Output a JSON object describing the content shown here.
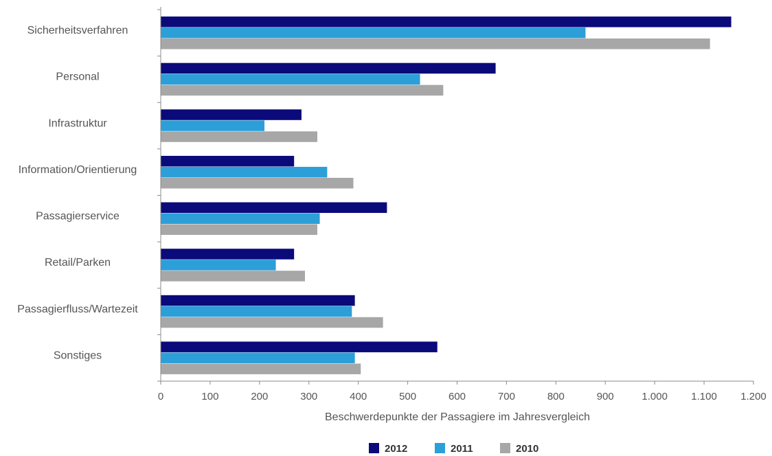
{
  "chart_data": {
    "type": "bar",
    "orientation": "horizontal",
    "categories": [
      "Sicherheitsverfahren",
      "Personal",
      "Infrastruktur",
      "Information/Orientierung",
      "Passagierservice",
      "Retail/Parken",
      "Passagierfluss/Wartezeit",
      "Sonstiges"
    ],
    "series": [
      {
        "name": "2012",
        "color": "#0a0a7a",
        "values": [
          1155,
          678,
          285,
          270,
          458,
          270,
          393,
          560
        ]
      },
      {
        "name": "2011",
        "color": "#2c9fd8",
        "values": [
          860,
          525,
          210,
          337,
          322,
          233,
          387,
          393
        ]
      },
      {
        "name": "2010",
        "color": "#a7a7a7",
        "values": [
          1112,
          572,
          317,
          390,
          317,
          292,
          450,
          405
        ]
      }
    ],
    "title": "",
    "xlabel": "Beschwerdepunkte der Passagiere im Jahresvergleich",
    "ylabel": "",
    "xlim": [
      0,
      1200
    ],
    "xticks": [
      0,
      100,
      200,
      300,
      400,
      500,
      600,
      700,
      800,
      900,
      1000,
      1100,
      1200
    ],
    "xtick_labels": [
      "0",
      "100",
      "200",
      "300",
      "400",
      "500",
      "600",
      "700",
      "800",
      "900",
      "1.000",
      "1.100",
      "1.200"
    ],
    "grid": false,
    "legend_position": "bottom-center"
  }
}
